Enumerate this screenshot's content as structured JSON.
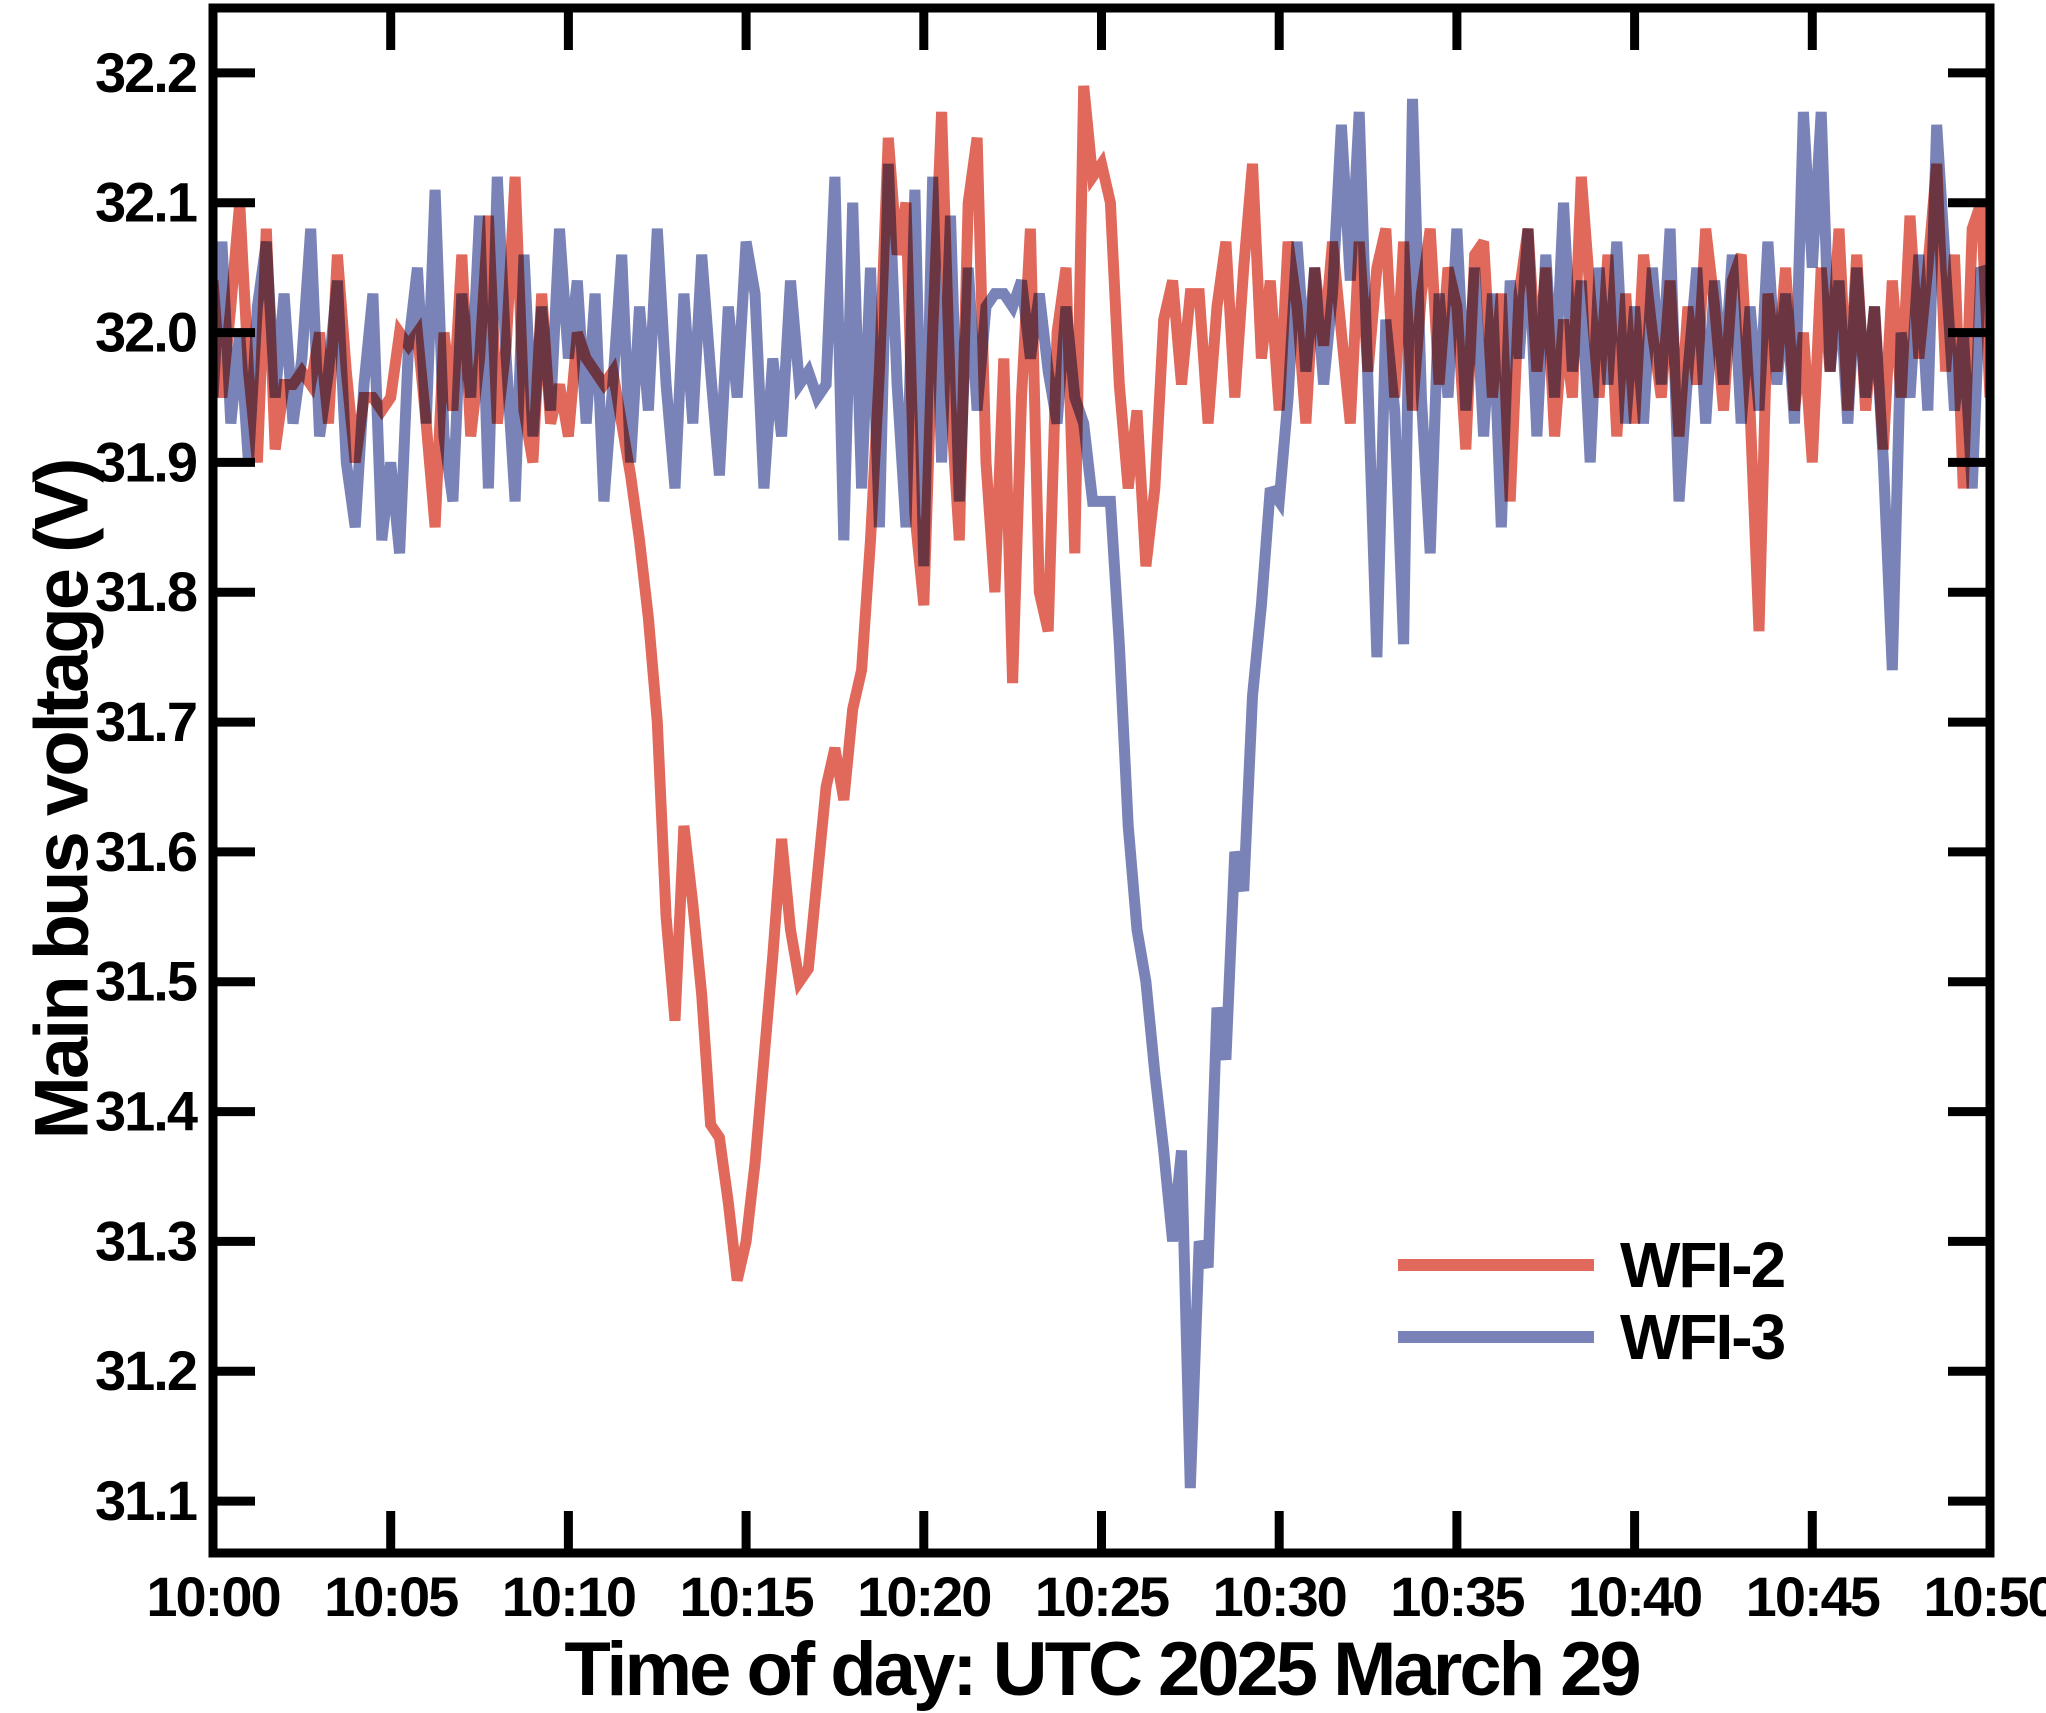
{
  "figure": {
    "background": "#ffffff",
    "axis_color": "#000000",
    "tick_direction": "in",
    "frame": "box"
  },
  "legend": {
    "position": "lower-right",
    "items": [
      {
        "label": "WFI-2",
        "color": "#E0695B"
      },
      {
        "label": "WFI-3",
        "color": "#7A83B7"
      }
    ]
  },
  "chart_data": {
    "type": "line",
    "title": "",
    "xlabel": "Time of day: UTC 2025 March 29",
    "ylabel": "Main bus voltage (V)",
    "x_unit": "minutes after 10:00 UTC",
    "xlim": [
      0,
      50
    ],
    "ylim": [
      31.06,
      32.25
    ],
    "grid": false,
    "x_ticks": [
      0,
      5,
      10,
      15,
      20,
      25,
      30,
      35,
      40,
      45,
      50
    ],
    "x_tick_labels": [
      "10:00",
      "10:05",
      "10:10",
      "10:15",
      "10:20",
      "10:25",
      "10:30",
      "10:35",
      "10:40",
      "10:45",
      "10:50"
    ],
    "y_ticks": [
      31.1,
      31.2,
      31.3,
      31.4,
      31.5,
      31.6,
      31.7,
      31.8,
      31.9,
      32.0,
      32.1,
      32.2
    ],
    "y_tick_labels": [
      "31.1",
      "31.2",
      "31.3",
      "31.4",
      "31.5",
      "31.6",
      "31.7",
      "31.8",
      "31.9",
      "32.0",
      "32.1",
      "32.2"
    ],
    "series": [
      {
        "name": "WFI-2",
        "color": "#E0695B",
        "t_start_min": 0,
        "t_step_min": 0.25,
        "values": [
          32.04,
          31.95,
          32.02,
          32.1,
          31.97,
          31.9,
          32.08,
          31.91,
          31.96,
          31.96,
          31.97,
          31.96,
          32.0,
          31.93,
          32.06,
          31.97,
          31.9,
          31.95,
          31.95,
          31.94,
          31.95,
          32.0,
          31.99,
          32.0,
          31.93,
          31.85,
          32.0,
          31.94,
          32.06,
          31.92,
          31.98,
          32.09,
          31.93,
          31.99,
          32.12,
          31.94,
          31.9,
          32.03,
          31.93,
          31.96,
          31.92,
          32.0,
          31.98,
          31.97,
          31.96,
          31.97,
          31.93,
          31.89,
          31.84,
          31.78,
          31.7,
          31.55,
          31.47,
          31.62,
          31.56,
          31.49,
          31.39,
          31.38,
          31.33,
          31.27,
          31.3,
          31.36,
          31.44,
          31.52,
          31.61,
          31.54,
          31.5,
          31.51,
          31.58,
          31.65,
          31.68,
          31.64,
          31.71,
          31.74,
          31.84,
          31.97,
          32.15,
          32.06,
          32.1,
          31.86,
          31.79,
          32.0,
          32.17,
          31.95,
          31.84,
          32.1,
          32.15,
          31.9,
          31.8,
          31.98,
          31.73,
          31.95,
          32.08,
          31.8,
          31.77,
          32.0,
          32.05,
          31.83,
          32.19,
          32.12,
          32.13,
          32.1,
          31.96,
          31.88,
          31.94,
          31.82,
          31.88,
          32.01,
          32.04,
          31.96,
          32.03,
          32.03,
          31.93,
          32.02,
          32.07,
          31.95,
          32.05,
          32.13,
          31.98,
          32.04,
          31.94,
          32.07,
          32.02,
          31.93,
          32.05,
          31.99,
          32.07,
          32.0,
          31.93,
          32.07,
          31.97,
          32.05,
          32.08,
          31.95,
          32.07,
          31.94,
          32.03,
          32.08,
          31.96,
          32.05,
          32.02,
          31.91,
          32.06,
          32.07,
          31.95,
          32.03,
          31.87,
          32.03,
          32.08,
          31.97,
          32.05,
          31.92,
          32.01,
          31.95,
          32.12,
          32.03,
          31.95,
          32.06,
          31.92,
          32.03,
          31.93,
          32.06,
          32.0,
          31.95,
          32.04,
          31.92,
          32.02,
          31.96,
          32.08,
          32.02,
          31.94,
          32.04,
          32.06,
          31.94,
          31.77,
          32.03,
          31.97,
          32.05,
          31.94,
          32.0,
          31.9,
          32.05,
          31.97,
          32.08,
          31.94,
          32.06,
          31.94,
          32.02,
          31.91,
          32.04,
          31.95,
          32.09,
          31.98,
          32.05,
          32.13,
          31.97,
          32.06,
          31.88,
          32.08,
          32.1,
          31.95
        ]
      },
      {
        "name": "WFI-3",
        "color": "#7A83B7",
        "t_start_min": 0,
        "t_step_min": 0.25,
        "values": [
          31.95,
          32.07,
          31.93,
          32.0,
          31.9,
          32.02,
          32.07,
          31.95,
          32.03,
          31.93,
          31.98,
          32.08,
          31.92,
          31.97,
          32.04,
          31.9,
          31.85,
          31.96,
          32.03,
          31.84,
          31.9,
          31.83,
          31.99,
          32.05,
          31.93,
          32.11,
          31.92,
          31.87,
          32.03,
          31.95,
          32.09,
          31.88,
          32.12,
          31.98,
          31.87,
          32.06,
          31.92,
          32.02,
          31.94,
          32.08,
          31.98,
          32.04,
          31.93,
          32.03,
          31.87,
          31.96,
          32.06,
          31.9,
          32.02,
          31.94,
          32.08,
          31.96,
          31.88,
          32.03,
          31.93,
          32.06,
          31.97,
          31.89,
          32.02,
          31.95,
          32.07,
          32.03,
          31.88,
          31.98,
          31.92,
          32.04,
          31.96,
          31.97,
          31.95,
          31.96,
          32.12,
          31.84,
          32.1,
          31.88,
          32.05,
          31.85,
          32.13,
          31.96,
          31.85,
          32.11,
          31.82,
          32.12,
          31.9,
          32.09,
          31.87,
          32.05,
          31.94,
          32.02,
          32.03,
          32.03,
          32.02,
          32.04,
          31.98,
          32.03,
          31.97,
          31.93,
          32.02,
          31.95,
          31.93,
          31.87,
          31.87,
          31.87,
          31.76,
          31.62,
          31.54,
          31.5,
          31.43,
          31.37,
          31.3,
          31.37,
          31.11,
          31.3,
          31.28,
          31.48,
          31.44,
          31.6,
          31.57,
          31.72,
          31.79,
          31.88,
          31.87,
          31.95,
          32.07,
          31.97,
          32.05,
          31.96,
          32.03,
          32.16,
          32.04,
          32.17,
          31.96,
          31.75,
          32.01,
          31.94,
          31.76,
          32.18,
          31.95,
          31.83,
          32.03,
          31.95,
          32.08,
          31.94,
          32.05,
          31.92,
          32.03,
          31.85,
          32.04,
          31.98,
          32.08,
          31.92,
          32.06,
          31.95,
          32.1,
          31.97,
          32.04,
          31.9,
          32.05,
          31.96,
          32.07,
          31.93,
          32.02,
          31.93,
          32.05,
          31.96,
          32.08,
          31.87,
          31.97,
          32.05,
          31.93,
          32.04,
          31.96,
          32.06,
          31.93,
          32.02,
          31.94,
          32.07,
          31.96,
          32.03,
          31.93,
          32.17,
          32.05,
          32.17,
          31.97,
          32.04,
          31.93,
          32.05,
          31.95,
          32.02,
          31.9,
          31.74,
          32.0,
          31.95,
          32.06,
          31.94,
          32.16,
          32.05,
          31.94,
          32.0,
          31.88,
          32.05,
          32.04
        ]
      }
    ]
  }
}
